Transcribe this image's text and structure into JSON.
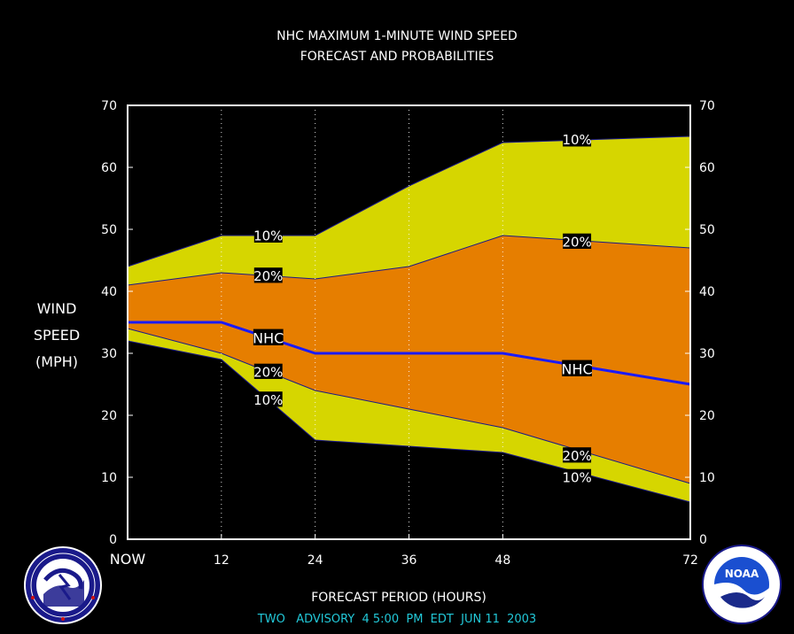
{
  "chart_data": {
    "type": "area",
    "title_line1": "NHC MAXIMUM 1-MINUTE WIND SPEED",
    "title_line2": "FORECAST AND PROBABILITIES",
    "xlabel": "FORECAST PERIOD (HOURS)",
    "ylabel_lines": [
      "WIND",
      "SPEED",
      "(MPH)"
    ],
    "footer": "TWO   ADVISORY  4 5:00  PM  EDT  JUN 11  2003",
    "xlim": [
      0,
      72
    ],
    "ylim": [
      0,
      70
    ],
    "x_ticks": [
      {
        "value": 0,
        "label": "NOW"
      },
      {
        "value": 12,
        "label": "12"
      },
      {
        "value": 24,
        "label": "24"
      },
      {
        "value": 36,
        "label": "36"
      },
      {
        "value": 48,
        "label": "48"
      },
      {
        "value": 72,
        "label": "72"
      }
    ],
    "y_ticks": [
      {
        "value": 0,
        "label": "0"
      },
      {
        "value": 10,
        "label": "10"
      },
      {
        "value": 20,
        "label": "20"
      },
      {
        "value": 30,
        "label": "30"
      },
      {
        "value": 40,
        "label": "40"
      },
      {
        "value": 50,
        "label": "50"
      },
      {
        "value": 60,
        "label": "60"
      },
      {
        "value": 70,
        "label": "70"
      }
    ],
    "vertical_gridlines": [
      12,
      24,
      36,
      48
    ],
    "x": [
      0,
      12,
      24,
      36,
      48,
      72
    ],
    "series": [
      {
        "name": "10%",
        "role": "upper-10",
        "values": [
          44,
          49,
          49,
          57,
          64,
          65
        ]
      },
      {
        "name": "20%",
        "role": "upper-20",
        "values": [
          41,
          43,
          42,
          44,
          49,
          47
        ]
      },
      {
        "name": "NHC",
        "role": "forecast",
        "values": [
          35,
          35,
          30,
          30,
          30,
          25
        ]
      },
      {
        "name": "20%",
        "role": "lower-20",
        "values": [
          34,
          30,
          24,
          21,
          18,
          9
        ]
      },
      {
        "name": "10%",
        "role": "lower-10",
        "values": [
          32,
          29,
          16,
          15,
          14,
          6
        ]
      }
    ],
    "curve_labels": [
      {
        "text": "10%",
        "x": 18,
        "y": 49
      },
      {
        "text": "20%",
        "x": 18,
        "y": 42.5
      },
      {
        "text": "NHC",
        "x": 18,
        "y": 32.5
      },
      {
        "text": "20%",
        "x": 18,
        "y": 27
      },
      {
        "text": "10%",
        "x": 18,
        "y": 22.5
      },
      {
        "text": "10%",
        "x": 57.5,
        "y": 64.5
      },
      {
        "text": "20%",
        "x": 57.5,
        "y": 48
      },
      {
        "text": "NHC",
        "x": 57.5,
        "y": 27.5
      },
      {
        "text": "20%",
        "x": 57.5,
        "y": 13.5
      },
      {
        "text": "10%",
        "x": 57.5,
        "y": 10
      }
    ],
    "colors": {
      "outer_band": "#d6d600",
      "inner_band": "#e67e00",
      "forecast_line": "#1a1aff",
      "background": "#000000",
      "plot_area": "#ffffff",
      "text": "#ffffff",
      "footer": "#22c8d8",
      "band_edge": "#1a1a8a"
    }
  },
  "logos": {
    "left": {
      "icon": "nws-logo-icon",
      "text": "NATIONAL WEATHER SERVICE"
    },
    "right": {
      "icon": "noaa-logo-icon",
      "text": "NOAA"
    }
  }
}
